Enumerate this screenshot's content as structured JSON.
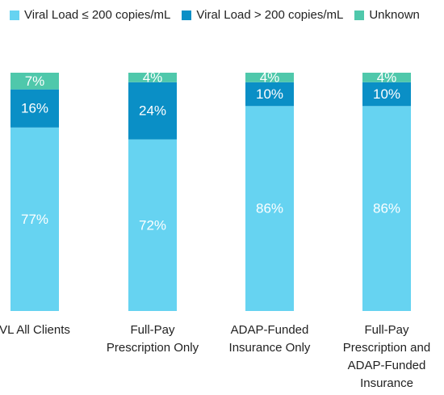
{
  "chart_data": {
    "type": "stacked_bar",
    "categories": [
      "VL All Clients",
      "Full-Pay Prescription Only",
      "ADAP-Funded Insurance Only",
      "Full-Pay Prescription and ADAP-Funded Insurance"
    ],
    "series": [
      {
        "name": "Viral Load ≤ 200 copies/mL",
        "color": "#66d3f1",
        "values": [
          77,
          72,
          86,
          86
        ],
        "value_labels": [
          "77%",
          "72%",
          "86%",
          "86%"
        ]
      },
      {
        "name": "Viral Load > 200 copies/mL",
        "color": "#0a8fc6",
        "values": [
          16,
          24,
          10,
          10
        ],
        "value_labels": [
          "16%",
          "24%",
          "10%",
          "10%"
        ]
      },
      {
        "name": "Unknown",
        "color": "#4fc8ab",
        "values": [
          7,
          4,
          4,
          4
        ],
        "value_labels": [
          "7%",
          "4%",
          "4%",
          "4%"
        ]
      }
    ]
  }
}
